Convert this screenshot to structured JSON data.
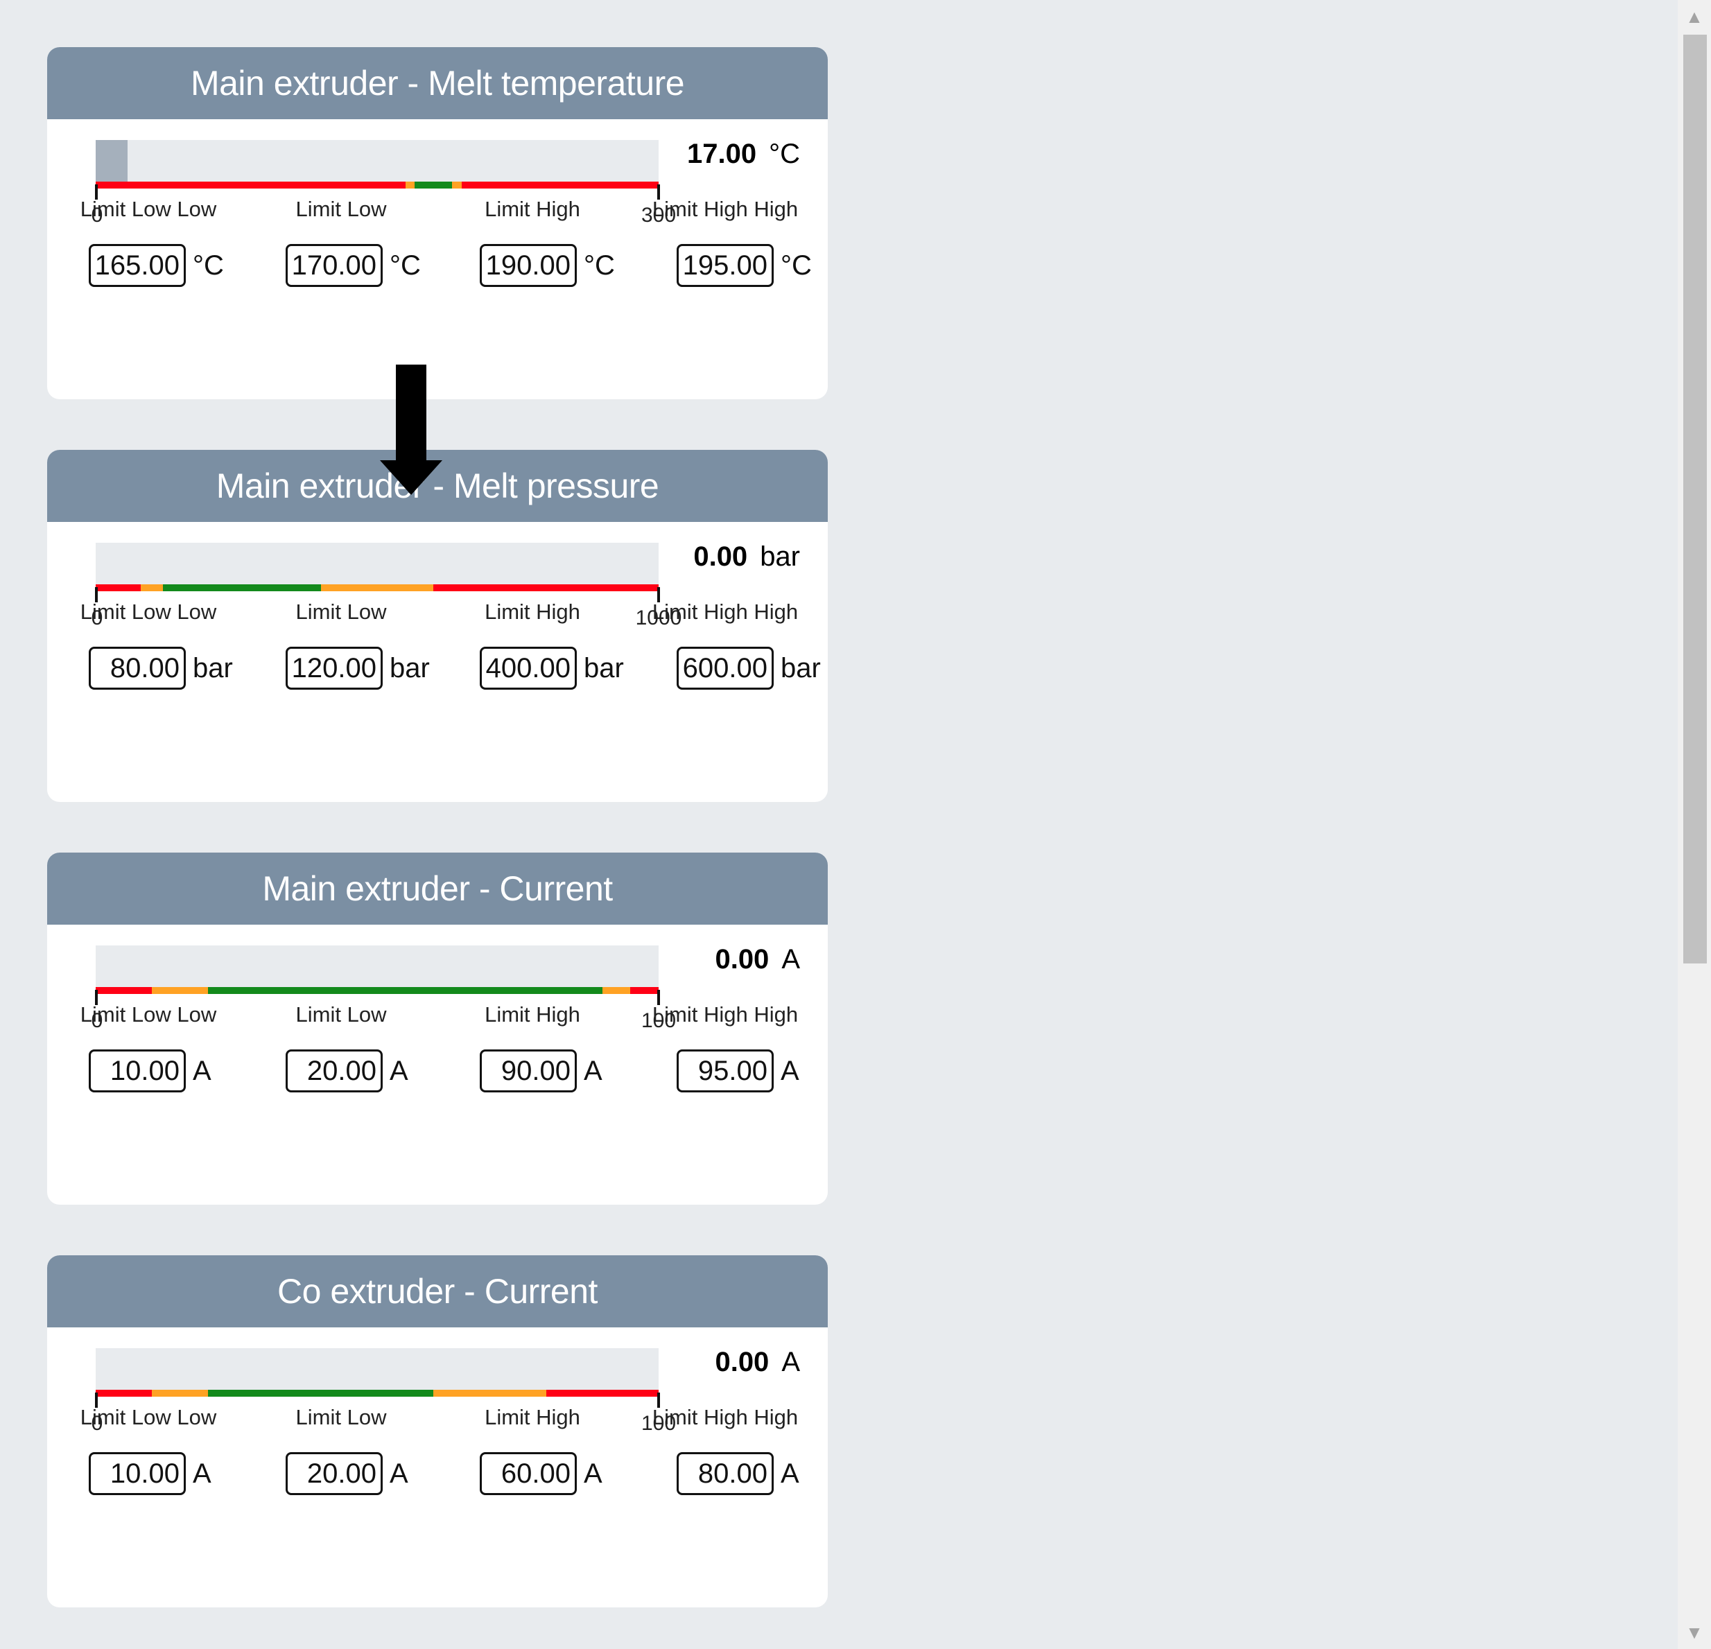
{
  "panels": [
    {
      "title": "Main extruder - Melt temperature",
      "value": "17.00",
      "unit": "°C",
      "range_min": "0",
      "range_max": "300",
      "min": 0,
      "max": 300,
      "current": 17,
      "limits": [
        {
          "label": "Limit Low Low",
          "value": "165.00"
        },
        {
          "label": "Limit Low",
          "value": "170.00"
        },
        {
          "label": "Limit High",
          "value": "190.00"
        },
        {
          "label": "Limit High High",
          "value": "195.00"
        }
      ],
      "zone_bounds": [
        165,
        170,
        190,
        195
      ]
    },
    {
      "title": "Main extruder - Melt pressure",
      "value": "0.00",
      "unit": "bar",
      "range_min": "0",
      "range_max": "1000",
      "min": 0,
      "max": 1000,
      "current": 0,
      "limits": [
        {
          "label": "Limit Low Low",
          "value": "80.00"
        },
        {
          "label": "Limit Low",
          "value": "120.00"
        },
        {
          "label": "Limit High",
          "value": "400.00"
        },
        {
          "label": "Limit High High",
          "value": "600.00"
        }
      ],
      "zone_bounds": [
        80,
        120,
        400,
        600
      ]
    },
    {
      "title": "Main extruder - Current",
      "value": "0.00",
      "unit": "A",
      "range_min": "0",
      "range_max": "100",
      "min": 0,
      "max": 100,
      "current": 0,
      "limits": [
        {
          "label": "Limit Low Low",
          "value": "10.00"
        },
        {
          "label": "Limit Low",
          "value": "20.00"
        },
        {
          "label": "Limit High",
          "value": "90.00"
        },
        {
          "label": "Limit High High",
          "value": "95.00"
        }
      ],
      "zone_bounds": [
        10,
        20,
        90,
        95
      ]
    },
    {
      "title": "Co extruder - Current",
      "value": "0.00",
      "unit": "A",
      "range_min": "0",
      "range_max": "100",
      "min": 0,
      "max": 100,
      "current": 0,
      "limits": [
        {
          "label": "Limit Low Low",
          "value": "10.00"
        },
        {
          "label": "Limit Low",
          "value": "20.00"
        },
        {
          "label": "Limit High",
          "value": "60.00"
        },
        {
          "label": "Limit High High",
          "value": "80.00"
        }
      ],
      "zone_bounds": [
        10,
        20,
        60,
        80
      ]
    }
  ],
  "colors": {
    "alarm": "#ff0015",
    "warning": "#ffa224",
    "ok": "#138a1c",
    "header": "#7b8fa3",
    "fill": "#a5b0bc"
  },
  "icons": {
    "pointer": "down-arrow-icon",
    "scroll_up": "triangle-up-icon",
    "scroll_down": "triangle-down-icon"
  }
}
